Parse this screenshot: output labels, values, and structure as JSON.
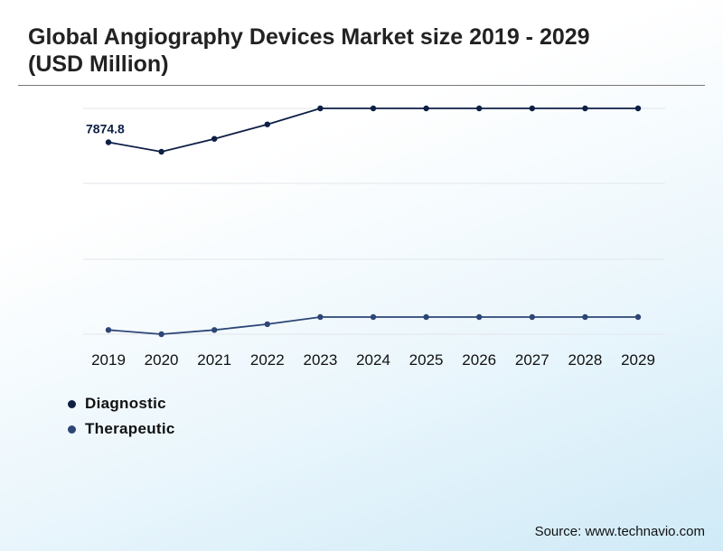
{
  "title": "Global Angiography Devices Market size 2019 - 2029 (USD Million)",
  "source": "Source: www.technavio.com",
  "colors": {
    "diagnostic": "#0d1f45",
    "therapeutic": "#2d4675",
    "grid": "#e2e6ea"
  },
  "chart_data": {
    "type": "line",
    "x": [
      "2019",
      "2020",
      "2021",
      "2022",
      "2023",
      "2024",
      "2025",
      "2026",
      "2027",
      "2028",
      "2029"
    ],
    "series": [
      {
        "name": "Diagnostic",
        "values": [
          7874.8,
          7750,
          7920,
          8110,
          8320,
          8320,
          8320,
          8320,
          8320,
          8320,
          8320
        ]
      },
      {
        "name": "Therapeutic",
        "values": [
          5060,
          5000,
          5060,
          5140,
          5240,
          5240,
          5240,
          5240,
          5240,
          5240,
          5240
        ]
      }
    ],
    "annotations": [
      {
        "series": "Diagnostic",
        "x": "2019",
        "label": "7874.8"
      }
    ],
    "ylim": [
      5000,
      8320
    ],
    "grid": true,
    "legend_position": "bottom-left",
    "xlabel": "",
    "ylabel": ""
  }
}
